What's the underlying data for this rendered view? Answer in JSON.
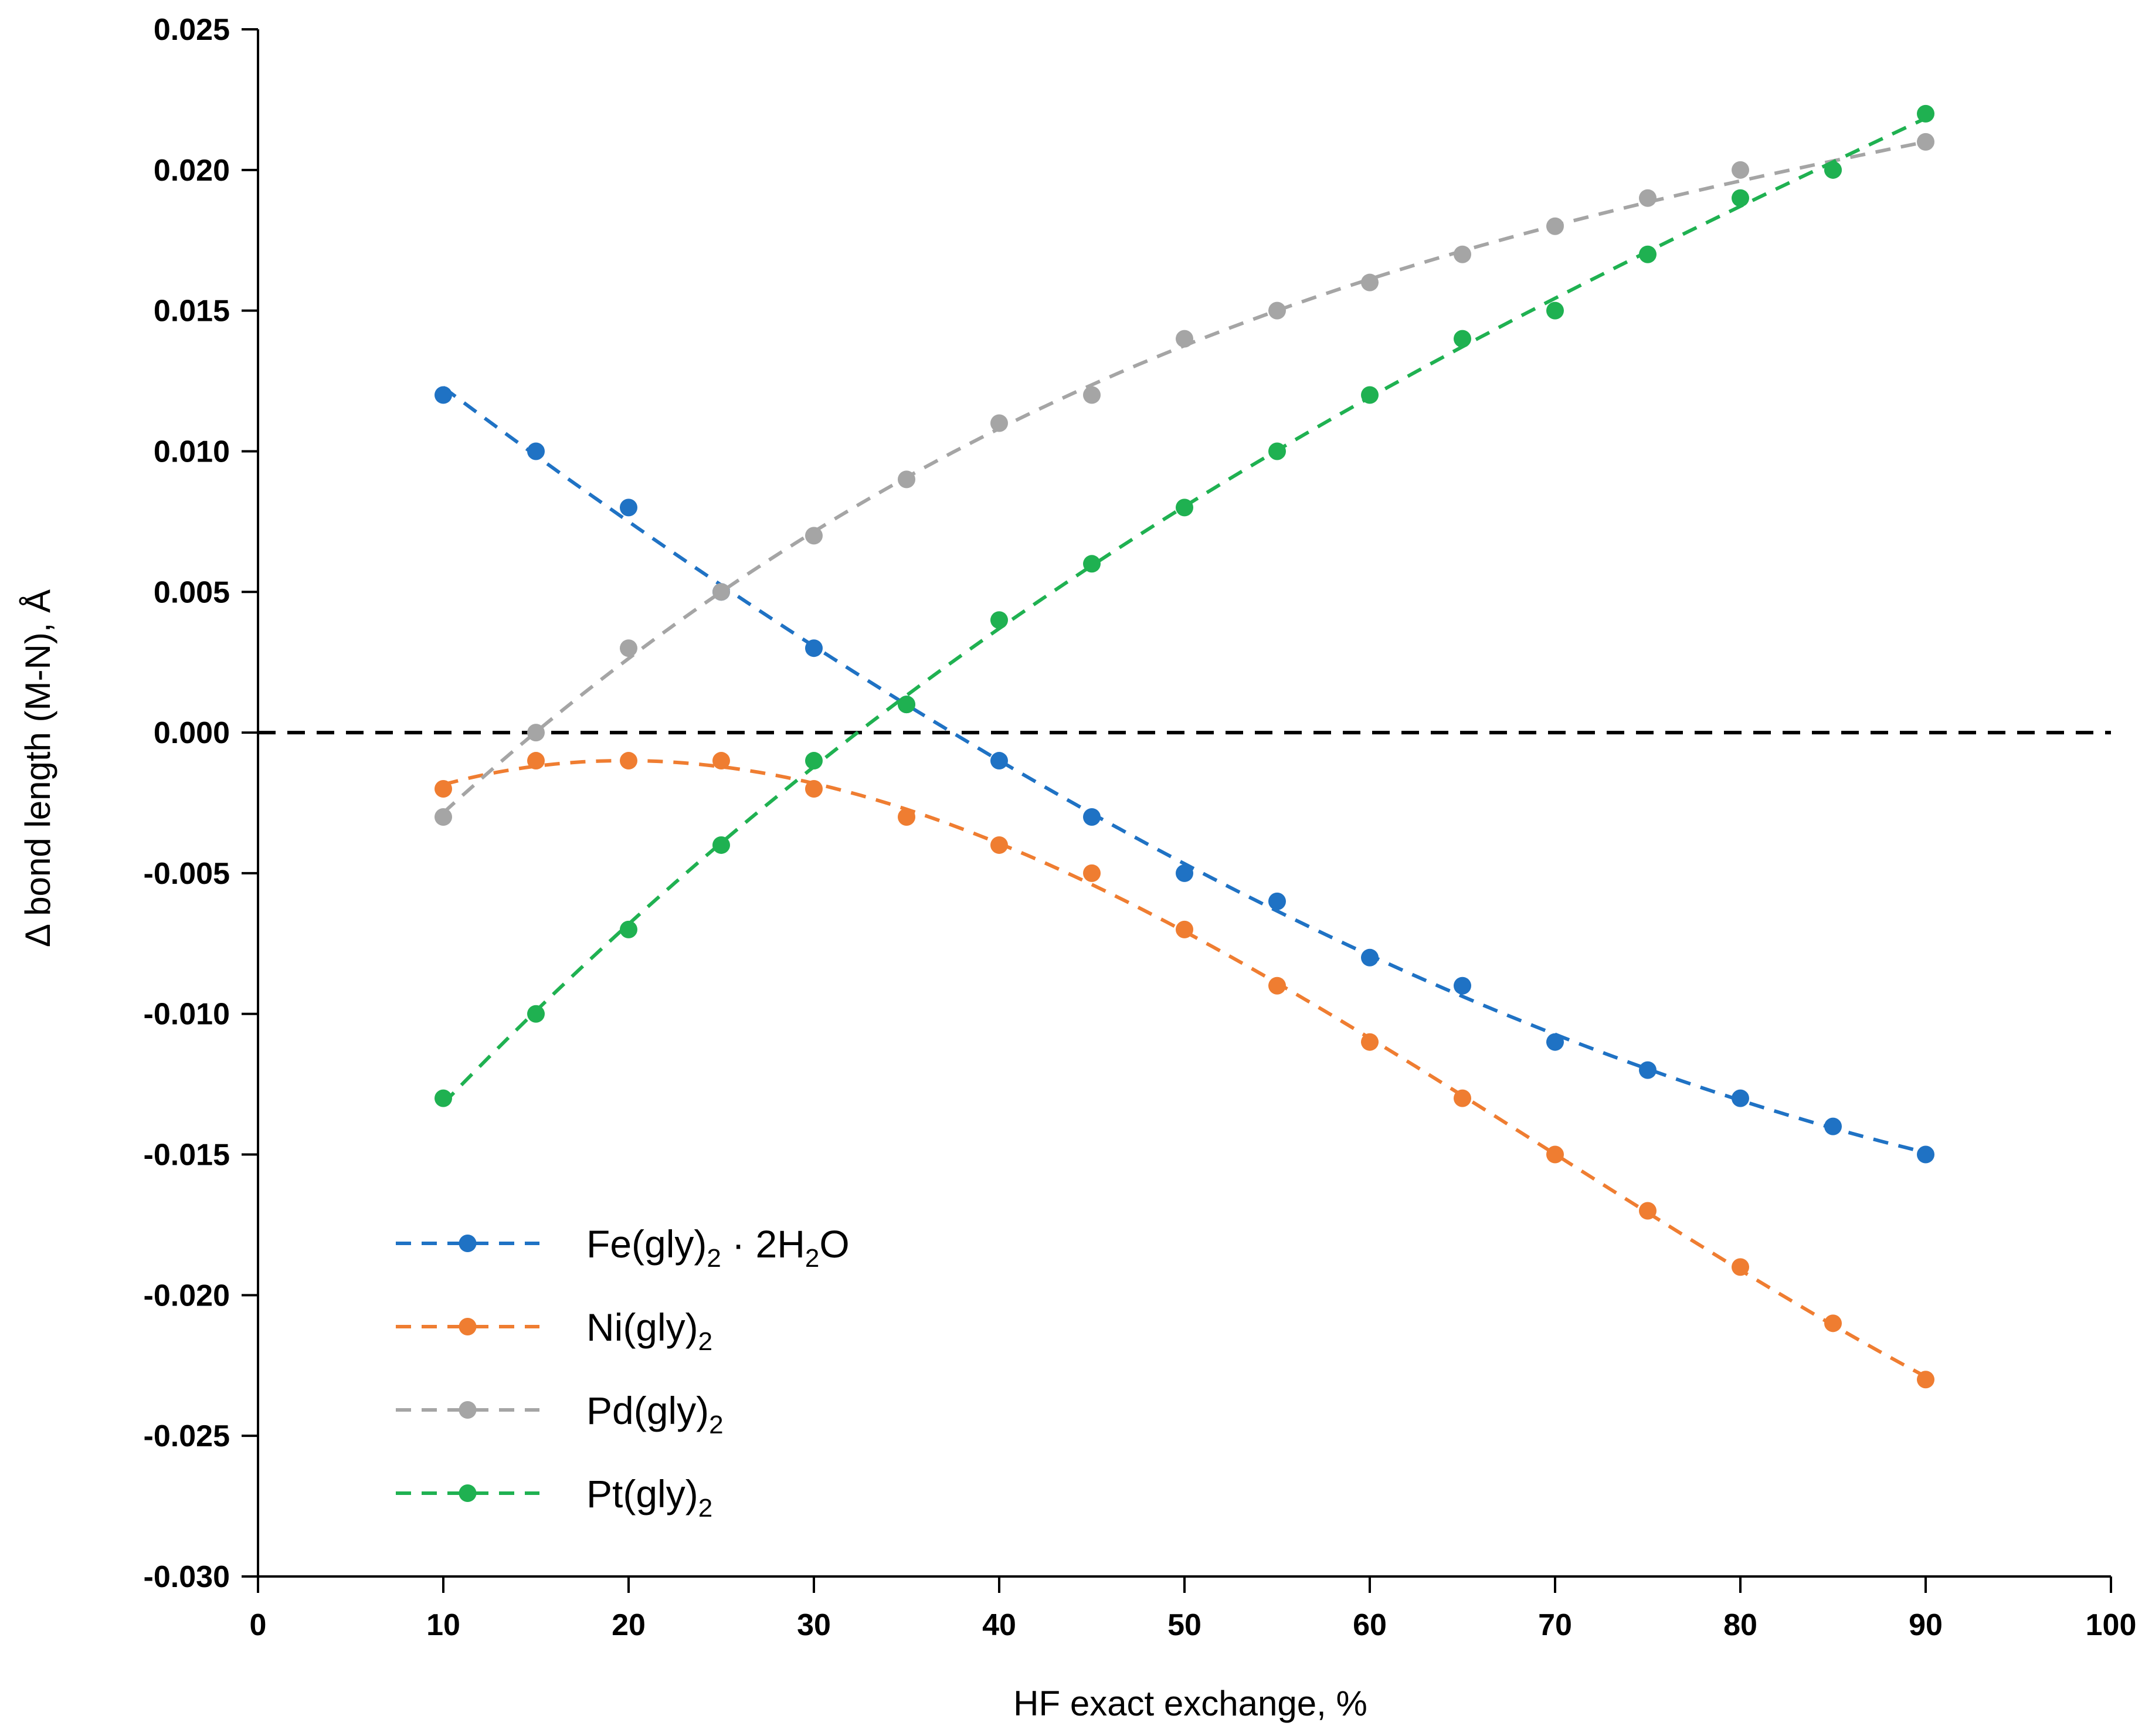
{
  "chart_data": {
    "type": "scatter",
    "xlabel": "HF exact exchange, %",
    "ylabel": "Δ bond length (M-N), Å",
    "xlim": [
      0,
      100
    ],
    "ylim": [
      -0.03,
      0.025
    ],
    "xticks": [
      "0",
      "10",
      "20",
      "30",
      "40",
      "50",
      "60",
      "70",
      "80",
      "90",
      "100"
    ],
    "yticks": [
      "0.025",
      "0.020",
      "0.015",
      "0.010",
      "0.005",
      "0.000",
      "-0.005",
      "-0.010",
      "-0.015",
      "-0.020",
      "-0.025",
      "-0.030"
    ],
    "grid": false,
    "legend_position": "bottom-left",
    "reference_line": {
      "y": 0.0,
      "style": "dashed",
      "color": "#000000"
    },
    "x": [
      10,
      15,
      20,
      25,
      30,
      35,
      40,
      45,
      50,
      55,
      60,
      65,
      70,
      75,
      80,
      85,
      90
    ],
    "series": [
      {
        "name": "Fe(gly)2 · 2H2O",
        "name_parts": [
          "Fe(gly)",
          "2",
          " · 2H",
          "2",
          "O"
        ],
        "color": "#1f72c4",
        "values": [
          0.012,
          0.01,
          0.008,
          0.005,
          0.003,
          0.001,
          -0.001,
          -0.003,
          -0.005,
          -0.006,
          -0.008,
          -0.009,
          -0.011,
          -0.012,
          -0.013,
          -0.014,
          -0.015
        ]
      },
      {
        "name": "Ni(gly)2",
        "name_parts": [
          "Ni(gly)",
          "2"
        ],
        "color": "#ef7d31",
        "values": [
          -0.002,
          -0.001,
          -0.001,
          -0.001,
          -0.002,
          -0.003,
          -0.004,
          -0.005,
          -0.007,
          -0.009,
          -0.011,
          -0.013,
          -0.015,
          -0.017,
          -0.019,
          -0.021,
          -0.023
        ]
      },
      {
        "name": "Pd(gly)2",
        "name_parts": [
          "Pd(gly)",
          "2"
        ],
        "color": "#a5a5a5",
        "values": [
          -0.003,
          0.0,
          0.003,
          0.005,
          0.007,
          0.009,
          0.011,
          0.012,
          0.014,
          0.015,
          0.016,
          0.017,
          0.018,
          0.019,
          0.02,
          0.02,
          0.021
        ]
      },
      {
        "name": "Pt(gly)2",
        "name_parts": [
          "Pt(gly)",
          "2"
        ],
        "color": "#1fb151",
        "values": [
          -0.013,
          -0.01,
          -0.007,
          -0.004,
          -0.001,
          0.001,
          0.004,
          0.006,
          0.008,
          0.01,
          0.012,
          0.014,
          0.015,
          0.017,
          0.019,
          0.02,
          0.022
        ]
      }
    ]
  }
}
